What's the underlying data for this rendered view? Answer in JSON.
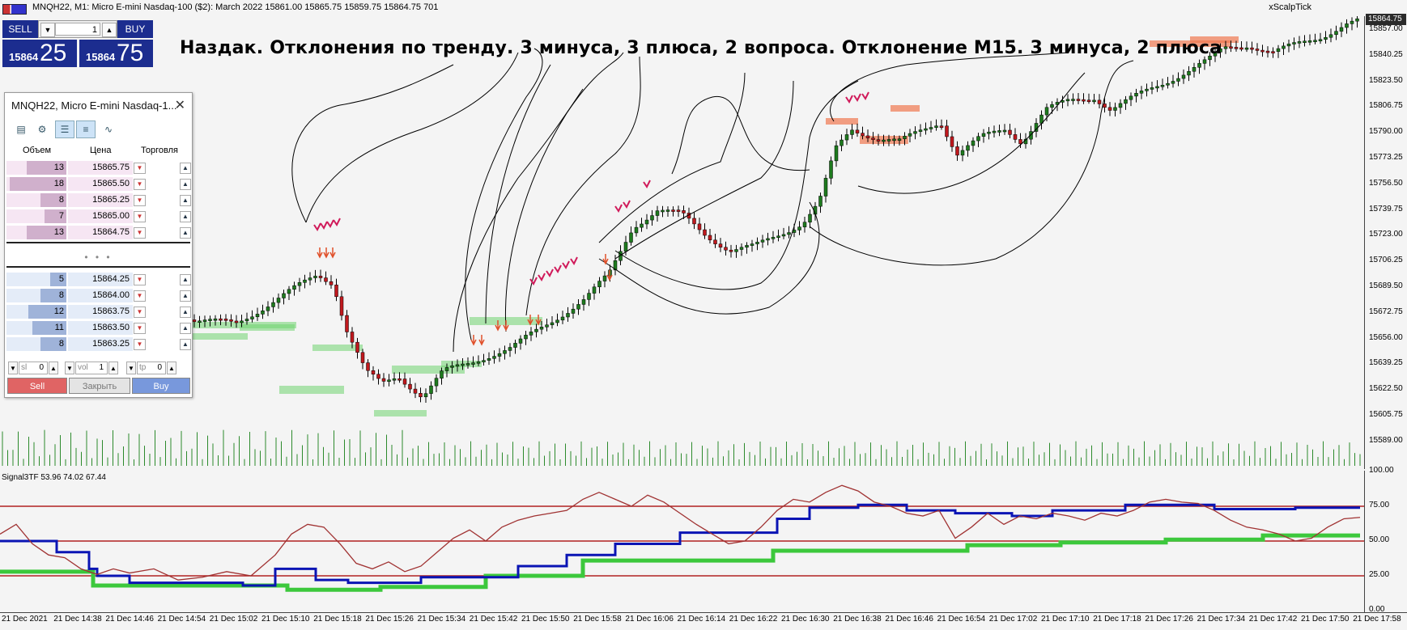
{
  "titlebar": {
    "text": "MNQH22, M1:  Micro E-mini Nasdaq-100 ($2): March 2022   15861.00  15865.75  15859.75  15864.75  701",
    "right": "xScalpTick"
  },
  "annotation": "Наздак. Отклонения по тренду. 3 минуса, 3 плюса, 2 вопроса. Отклонение М15. 3 минуса, 2 плюса",
  "oneclick": {
    "sell_label": "SELL",
    "buy_label": "BUY",
    "volume": "1",
    "bid_small": "15864",
    "bid_big": "25",
    "ask_small": "15864",
    "ask_big": "75"
  },
  "dom": {
    "title": "MNQH22, Micro E-mini Nasdaq-1...",
    "headers": [
      "Объем",
      "Цена",
      "Торговля"
    ],
    "asks": [
      {
        "vol": "13",
        "price": "15865.75",
        "fill": 0.7
      },
      {
        "vol": "18",
        "price": "15865.50",
        "fill": 1.0
      },
      {
        "vol": "8",
        "price": "15865.25",
        "fill": 0.45
      },
      {
        "vol": "7",
        "price": "15865.00",
        "fill": 0.38
      },
      {
        "vol": "13",
        "price": "15864.75",
        "fill": 0.7
      }
    ],
    "dots": "• • •",
    "bids": [
      {
        "vol": "5",
        "price": "15864.25",
        "fill": 0.28
      },
      {
        "vol": "8",
        "price": "15864.00",
        "fill": 0.45
      },
      {
        "vol": "12",
        "price": "15863.75",
        "fill": 0.67
      },
      {
        "vol": "11",
        "price": "15863.50",
        "fill": 0.6
      },
      {
        "vol": "8",
        "price": "15863.25",
        "fill": 0.45
      }
    ],
    "sl_label": "sl",
    "sl_value": "0",
    "vol_label": "vol",
    "vol_value": "1",
    "tp_label": "tp",
    "tp_value": "0",
    "sell_btn": "Sell",
    "close_btn": "Закрыть",
    "buy_btn": "Buy"
  },
  "price_axis": {
    "current": "15864.75",
    "ticks": [
      "15857.00",
      "15840.25",
      "15823.50",
      "15806.75",
      "15790.00",
      "15773.25",
      "15756.50",
      "15739.75",
      "15723.00",
      "15706.25",
      "15689.50",
      "15672.75",
      "15656.00",
      "15639.25",
      "15622.50",
      "15605.75",
      "15589.00"
    ]
  },
  "indicator": {
    "label": "Signal3TF 53.96 74.02 67.44",
    "ticks": [
      "100.00",
      "75.00",
      "50.00",
      "25.00",
      "0.00"
    ]
  },
  "time_axis": [
    "21 Dec 2021",
    "21 Dec 14:38",
    "21 Dec 14:46",
    "21 Dec 14:54",
    "21 Dec 15:02",
    "21 Dec 15:10",
    "21 Dec 15:18",
    "21 Dec 15:26",
    "21 Dec 15:34",
    "21 Dec 15:42",
    "21 Dec 15:50",
    "21 Dec 15:58",
    "21 Dec 16:06",
    "21 Dec 16:14",
    "21 Dec 16:22",
    "21 Dec 16:30",
    "21 Dec 16:38",
    "21 Dec 16:46",
    "21 Dec 16:54",
    "21 Dec 17:02",
    "21 Dec 17:10",
    "21 Dec 17:18",
    "21 Dec 17:26",
    "21 Dec 17:34",
    "21 Dec 17:42",
    "21 Dec 17:50",
    "21 Dec 17:58"
  ],
  "colors": {
    "bull": "#1e7a1e",
    "bear": "#c0191e",
    "grid_red": "#b22222",
    "signal_blue": "#0a14b4",
    "signal_green": "#3cc83c",
    "signal_brown": "#a03232",
    "zone_green": "#6fd36f",
    "zone_red": "#f07850"
  }
}
